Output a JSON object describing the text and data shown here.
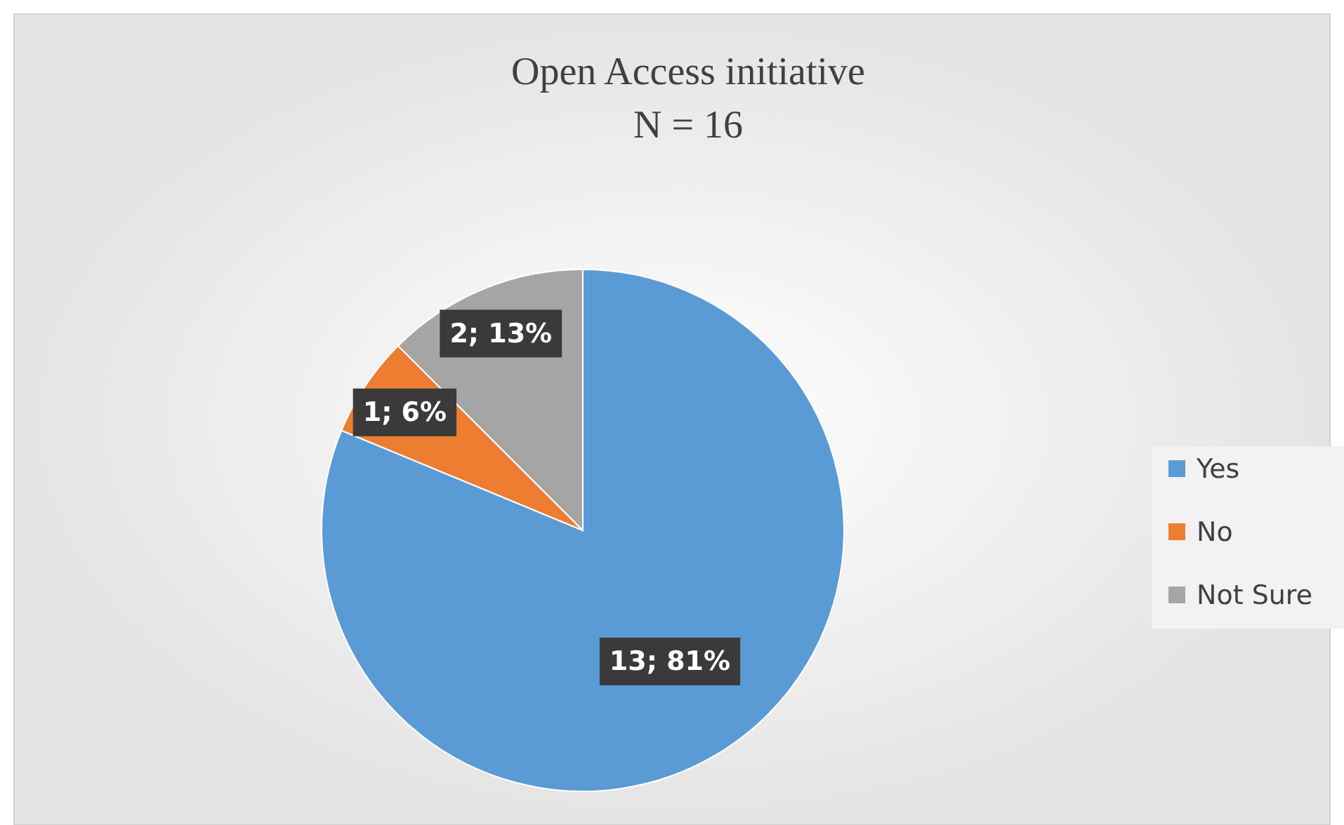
{
  "chart_data": {
    "type": "pie",
    "title": "Open Access initiative",
    "subtitle": "N = 16",
    "categories": [
      "Yes",
      "No",
      "Not Sure"
    ],
    "values": [
      13,
      1,
      2
    ],
    "colors": [
      "#5b9bd5",
      "#ed7d31",
      "#a5a5a5"
    ],
    "value_labels": [
      "13; 81%",
      "1; 6%",
      "2; 13%"
    ],
    "legend": "right"
  }
}
